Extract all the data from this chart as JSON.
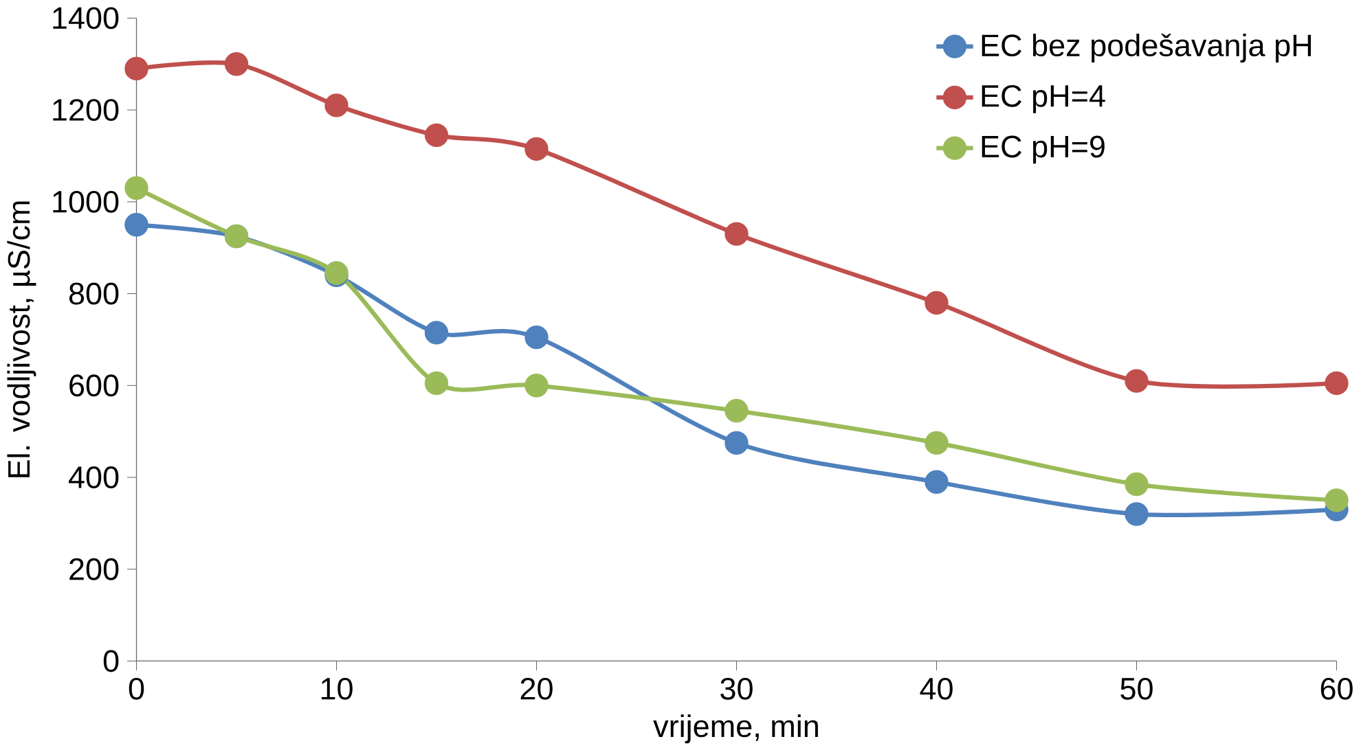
{
  "chart_data": {
    "type": "line",
    "xlabel": "vrijeme, min",
    "ylabel": "El. vodljivost, µS/cm",
    "x": [
      0,
      5,
      10,
      15,
      20,
      30,
      40,
      50,
      60
    ],
    "series": [
      {
        "name": "EC bez podešavanja pH",
        "color": "#4f81bd",
        "values": [
          950,
          925,
          840,
          715,
          705,
          475,
          390,
          320,
          330
        ]
      },
      {
        "name": "EC pH=4",
        "color": "#c0504d",
        "values": [
          1290,
          1300,
          1210,
          1145,
          1115,
          930,
          780,
          610,
          605
        ]
      },
      {
        "name": "EC pH=9",
        "color": "#9bbb59",
        "values": [
          1030,
          925,
          845,
          605,
          600,
          545,
          475,
          385,
          350
        ]
      }
    ],
    "xlim": [
      0,
      60
    ],
    "xticks": [
      0,
      10,
      20,
      30,
      40,
      50,
      60
    ],
    "ylim": [
      0,
      1400
    ],
    "yticks": [
      0,
      200,
      400,
      600,
      800,
      1000,
      1200,
      1400
    ],
    "legend": "top right",
    "marker": "circle",
    "line_style": "solid",
    "grid": false
  }
}
